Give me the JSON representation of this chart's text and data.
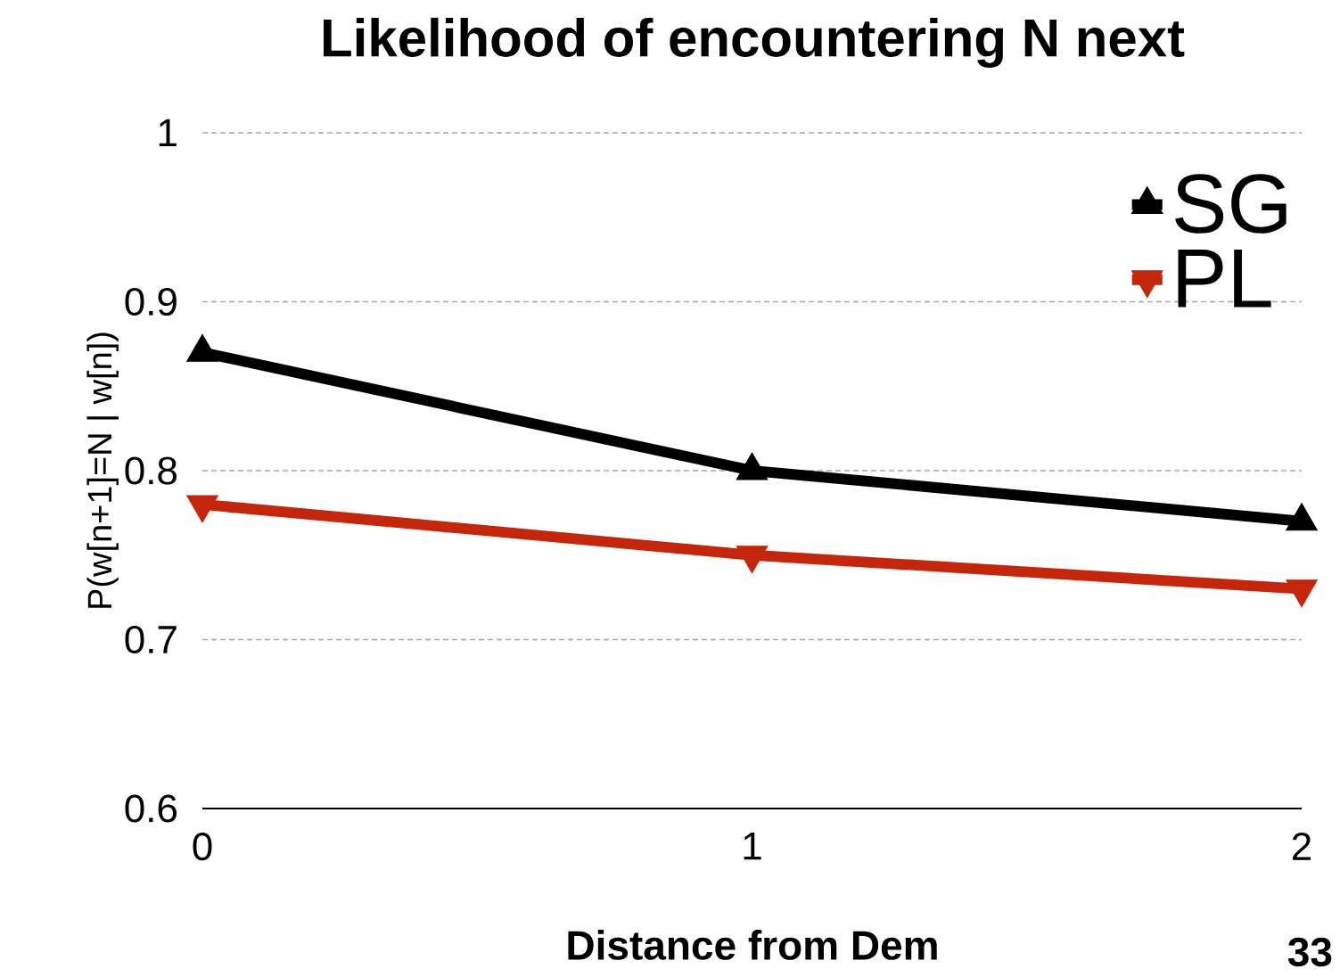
{
  "chart_data": {
    "type": "line",
    "title": "Likelihood of encountering N next",
    "xlabel": "Distance from Dem",
    "ylabel": "P(w[n+1]=N | w[n])",
    "x": [
      0,
      1,
      2
    ],
    "series": [
      {
        "name": "SG",
        "color": "#000000",
        "marker": "triangle",
        "values": [
          0.87,
          0.8,
          0.77
        ]
      },
      {
        "name": "PL",
        "color": "#c4260b",
        "marker": "triangle-down",
        "values": [
          0.78,
          0.75,
          0.73
        ]
      }
    ],
    "xlim": [
      0,
      2
    ],
    "xticks": [
      0,
      1,
      2
    ],
    "ylim": [
      0.6,
      1
    ],
    "yticks": [
      0.6,
      0.7,
      0.8,
      0.9,
      1
    ],
    "grid": "y",
    "legend": "top right",
    "line_style": "solid",
    "annotations": [
      "33"
    ]
  }
}
